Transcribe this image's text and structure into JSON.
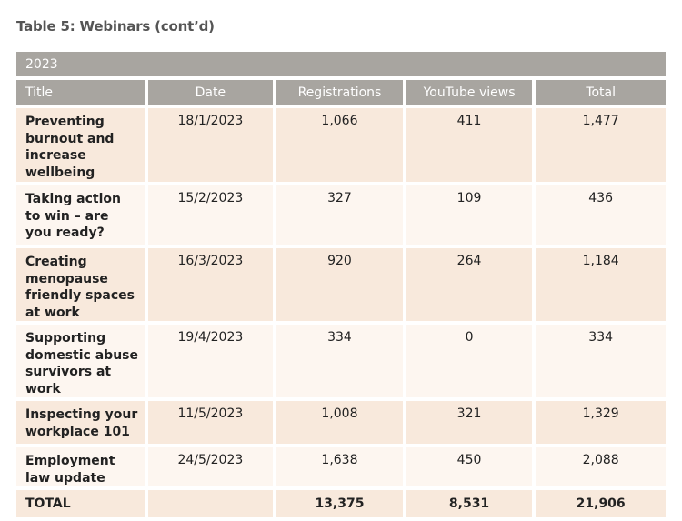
{
  "header": {
    "title": "Table 5: Webinars (cont’d)"
  },
  "table": {
    "section": "2023",
    "columns": [
      "Title",
      "Date",
      "Registrations",
      "YouTube views",
      "Total"
    ],
    "rows": [
      [
        "Preventing burnout and increase wellbeing",
        "18/1/2023",
        "1,066",
        "411",
        "1,477"
      ],
      [
        "Taking action to win – are you ready?",
        "15/2/2023",
        "327",
        "109",
        "436"
      ],
      [
        "Creating menopause friendly spaces at work",
        "16/3/2023",
        "920",
        "264",
        "1,184"
      ],
      [
        "Supporting domestic abuse survivors at work",
        "19/4/2023",
        "334",
        "0",
        "334"
      ],
      [
        "Inspecting your workplace 101",
        "11/5/2023",
        "1,008",
        "321",
        "1,329"
      ],
      [
        "Employment law update",
        "24/5/2023",
        "1,638",
        "450",
        "2,088"
      ]
    ],
    "total": [
      "TOTAL",
      "13,375",
      "8,531",
      "21,906"
    ]
  }
}
